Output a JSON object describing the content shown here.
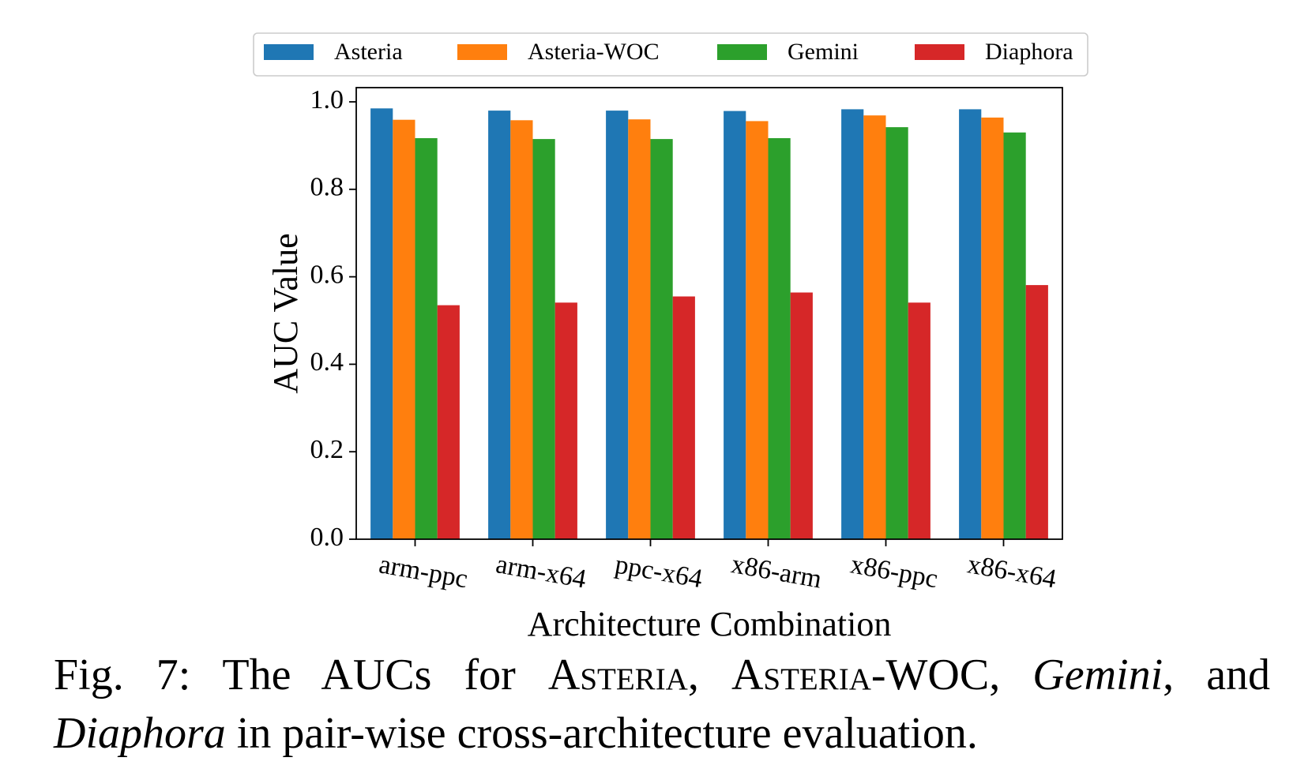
{
  "chart_data": {
    "type": "bar",
    "categories": [
      "arm-ppc",
      "arm-x64",
      "ppc-x64",
      "x86-arm",
      "x86-ppc",
      "x86-x64"
    ],
    "series": [
      {
        "name": "Asteria",
        "color": "#1f77b4",
        "values": [
          0.985,
          0.98,
          0.98,
          0.979,
          0.983,
          0.983
        ]
      },
      {
        "name": "Asteria-WOC",
        "color": "#ff7f0e",
        "values": [
          0.959,
          0.958,
          0.96,
          0.956,
          0.969,
          0.964
        ]
      },
      {
        "name": "Gemini",
        "color": "#2ca02c",
        "values": [
          0.917,
          0.915,
          0.915,
          0.917,
          0.942,
          0.93
        ]
      },
      {
        "name": "Diaphora",
        "color": "#d62728",
        "values": [
          0.535,
          0.541,
          0.555,
          0.564,
          0.541,
          0.581
        ]
      }
    ],
    "xlabel": "Architecture Combination",
    "ylabel": "AUC Value",
    "ylim": [
      0.0,
      1.0
    ],
    "yticks": [
      0.0,
      0.2,
      0.4,
      0.6,
      0.8,
      1.0
    ],
    "ytick_labels": [
      "0.0",
      "0.2",
      "0.4",
      "0.6",
      "0.8",
      "1.0"
    ],
    "grid": false,
    "legend_position": "top-center"
  },
  "caption": {
    "label": "Fig. 7:",
    "text_1": "The AUCs for",
    "name_1": "Asteria",
    "sep_1": ",",
    "name_2": "Asteria",
    "name_2_suffix": "-WOC,",
    "name_3": "Gemini",
    "text_2": ", and",
    "name_4": "Diaphora",
    "text_3": "in pair-wise cross-architecture evaluation."
  }
}
